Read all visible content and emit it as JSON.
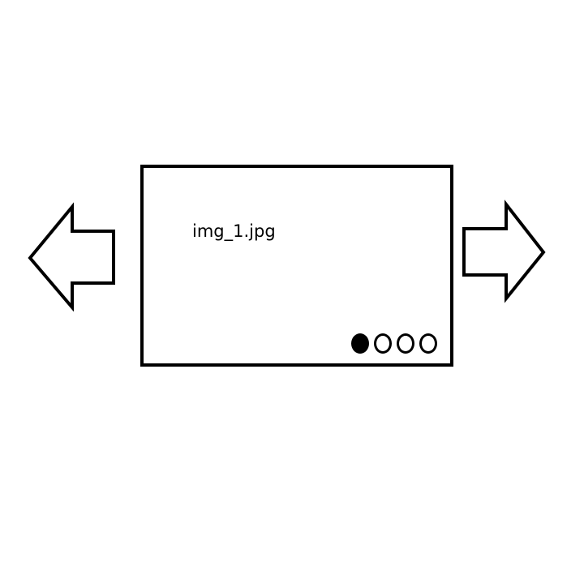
{
  "carousel": {
    "caption": "img_1.jpg",
    "slides": [
      {
        "active": true
      },
      {
        "active": false
      },
      {
        "active": false
      },
      {
        "active": false
      }
    ],
    "border_color": "#000000",
    "background_color": "#ffffff"
  },
  "controls": {
    "prev_icon": "arrow-left-icon",
    "next_icon": "arrow-right-icon"
  }
}
